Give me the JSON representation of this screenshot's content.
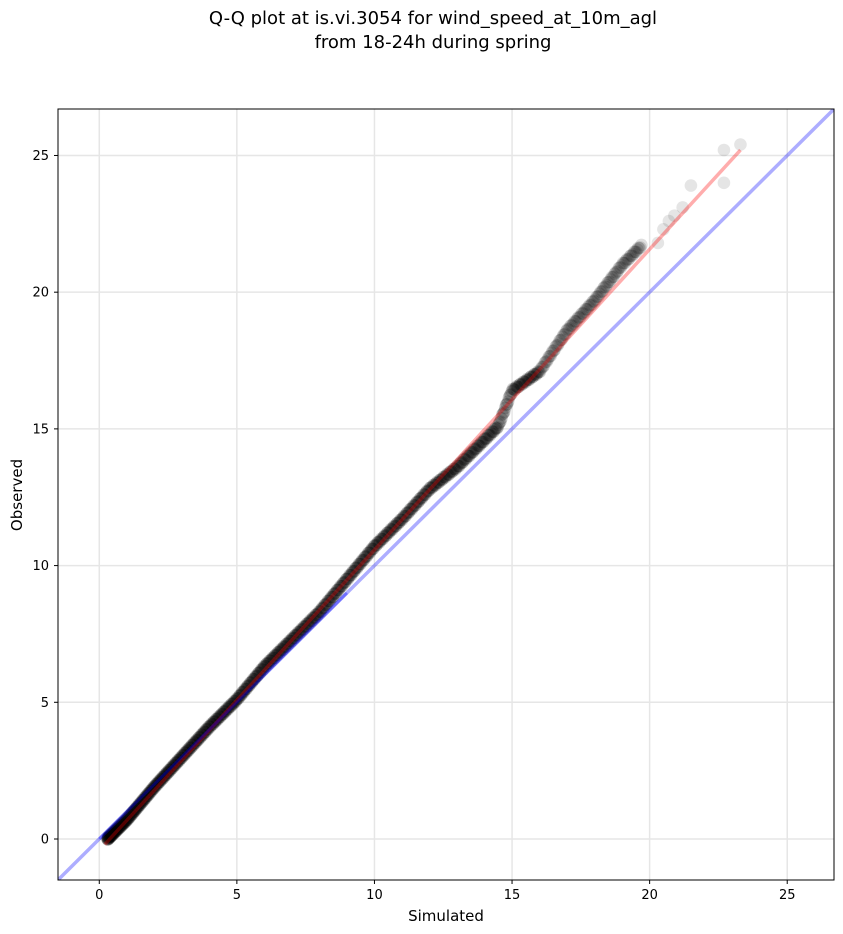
{
  "chart_data": {
    "type": "scatter",
    "title_line1": "Q-Q plot at is.vi.3054 for wind_speed_at_10m_agl",
    "title_line2": "from 18-24h during spring",
    "xlabel": "Simulated",
    "ylabel": "Observed",
    "xlim": [
      -1.5,
      26.7
    ],
    "ylim": [
      -1.5,
      26.7
    ],
    "xticks": [
      0,
      5,
      10,
      15,
      20,
      25
    ],
    "yticks": [
      0,
      5,
      10,
      15,
      20,
      25
    ],
    "grid": true,
    "identity_line": {
      "slope": 1,
      "intercept": 0,
      "color": "#0000ff"
    },
    "fit_line": {
      "x": [
        0.2,
        23.3
      ],
      "y": [
        -0.2,
        25.2
      ],
      "color": "#ff0000"
    },
    "point_color": "#000000",
    "quantile_anchors": {
      "x": [
        0.3,
        0.6,
        1.0,
        2.0,
        3.0,
        4.0,
        5.0,
        6.0,
        7.0,
        8.0,
        9.0,
        10.0,
        11.0,
        12.0,
        13.0,
        14.0,
        14.5,
        15.0,
        16.0,
        17.0,
        18.0,
        19.0,
        19.7
      ],
      "y": [
        0.0,
        0.3,
        0.7,
        1.9,
        3.0,
        4.1,
        5.1,
        6.3,
        7.3,
        8.3,
        9.5,
        10.7,
        11.7,
        12.8,
        13.6,
        14.6,
        15.1,
        16.4,
        17.1,
        18.6,
        19.7,
        21.0,
        21.7
      ]
    },
    "tail_points": [
      {
        "x": 20.3,
        "y": 21.8
      },
      {
        "x": 20.5,
        "y": 22.3
      },
      {
        "x": 20.7,
        "y": 22.6
      },
      {
        "x": 20.9,
        "y": 22.8
      },
      {
        "x": 21.2,
        "y": 23.1
      },
      {
        "x": 21.5,
        "y": 23.9
      },
      {
        "x": 22.7,
        "y": 24.0
      },
      {
        "x": 22.7,
        "y": 25.2
      },
      {
        "x": 23.3,
        "y": 25.4
      }
    ]
  }
}
